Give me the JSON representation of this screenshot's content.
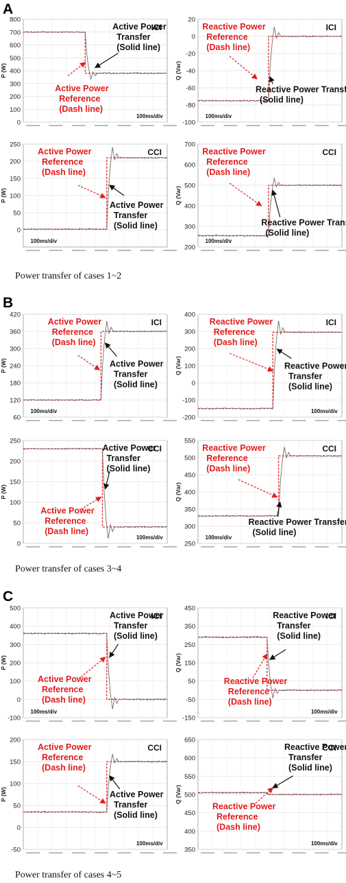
{
  "sections": [
    {
      "letter": "A",
      "caption": "Power transfer of cases 1~2"
    },
    {
      "letter": "B",
      "caption": "Power transfer of cases 3~4"
    },
    {
      "letter": "C",
      "caption": "Power transfer of cases 4~5"
    }
  ],
  "chart_data": [
    {
      "type": "line",
      "interface": "ICI",
      "ylabel": "P (W)",
      "ylim": [
        0,
        800
      ],
      "yticks": [
        0,
        100,
        200,
        300,
        400,
        500,
        600,
        700,
        800
      ],
      "timebase": "100ms/div",
      "reference": {
        "before": 700,
        "after": 380
      },
      "series": [
        {
          "name": "Active Power Reference (Dash line)"
        },
        {
          "name": "Active Power Transfer (Solid line)"
        }
      ],
      "annotations": {
        "reference": "Active Power|Reference|(Dash line)",
        "transfer": "Active Power|Transfer|(Solid line)"
      }
    },
    {
      "type": "line",
      "interface": "ICI",
      "ylabel": "Q (Var)",
      "ylim": [
        -100,
        20
      ],
      "yticks": [
        -100,
        -80,
        -60,
        -40,
        -20,
        0,
        20
      ],
      "timebase": "100ms/div",
      "reference": {
        "before": -75,
        "after": 0
      },
      "series": [
        {
          "name": "Reactive Power Reference (Dash line)"
        },
        {
          "name": "Reactive Power Transfer (Solid line)"
        }
      ],
      "annotations": {
        "reference": "Reactive Power|Reference|(Dash line)",
        "transfer": "Reactive Power Transfer|(Solid line)"
      }
    },
    {
      "type": "line",
      "interface": "CCI",
      "ylabel": "P (W)",
      "ylim": [
        -50,
        250
      ],
      "yticks": [
        0,
        50,
        100,
        150,
        200,
        250
      ],
      "timebase": "100ms/div",
      "reference": {
        "before": 2,
        "after": 210
      },
      "series": [
        {
          "name": "Active Power Reference (Dash line)"
        },
        {
          "name": "Active Power Transfer (Solid line)"
        }
      ],
      "annotations": {
        "reference": "Active Power|Reference|(Dash line)",
        "transfer": "Active Power|Transfer|(Solid line)"
      }
    },
    {
      "type": "line",
      "interface": "CCI",
      "ylabel": "Q (Var)",
      "ylim": [
        200,
        700
      ],
      "yticks": [
        200,
        300,
        400,
        500,
        600,
        700
      ],
      "timebase": "100ms/div",
      "reference": {
        "before": 255,
        "after": 500
      },
      "series": [
        {
          "name": "Reactive Power Reference (Dash line)"
        },
        {
          "name": "Reactive Power Transfer (Solid line)"
        }
      ],
      "annotations": {
        "reference": "Reactive Power|Reference|(Dash line)",
        "transfer": "Reactive Power Transfer|(Solid line)"
      }
    },
    {
      "type": "line",
      "interface": "ICI",
      "ylabel": "P (W)",
      "ylim": [
        60,
        420
      ],
      "yticks": [
        60,
        120,
        180,
        240,
        300,
        360,
        420
      ],
      "timebase": "100ms/div",
      "reference": {
        "before": 120,
        "after": 360
      },
      "series": [
        {
          "name": "Active Power Reference (Dash line)"
        },
        {
          "name": "Active Power Transfer (Solid line)"
        }
      ],
      "annotations": {
        "reference": "Active Power|Reference|(Dash line)",
        "transfer": "Active Power|Transfer|(Solid line)"
      }
    },
    {
      "type": "line",
      "interface": "ICI",
      "ylabel": "Q (Var)",
      "ylim": [
        -200,
        400
      ],
      "yticks": [
        -200,
        -100,
        0,
        100,
        200,
        300,
        400
      ],
      "timebase": "100ms/div",
      "reference": {
        "before": -150,
        "after": 295
      },
      "series": [
        {
          "name": "Reactive Power Reference (Dash line)"
        },
        {
          "name": "Reactive Power Transfer (Solid line)"
        }
      ],
      "annotations": {
        "reference": "Reactive Power|Reference|(Dash line)",
        "transfer": "Reactive Power|Transfer|(Solid line)"
      }
    },
    {
      "type": "line",
      "interface": "CCI",
      "ylabel": "P (W)",
      "ylim": [
        0,
        250
      ],
      "yticks": [
        0,
        50,
        100,
        150,
        200,
        250
      ],
      "timebase": "100ms/div",
      "reference": {
        "before": 230,
        "after": 40
      },
      "series": [
        {
          "name": "Active Power Reference (Dash line)"
        },
        {
          "name": "Active Power Transfer (Solid line)"
        }
      ],
      "annotations": {
        "reference": "Active Power|Reference|(Dash line)",
        "transfer": "Active Power|Transfer|(Solid line)"
      }
    },
    {
      "type": "line",
      "interface": "CCI",
      "ylabel": "Q (Var)",
      "ylim": [
        250,
        550
      ],
      "yticks": [
        250,
        300,
        350,
        400,
        450,
        500,
        550
      ],
      "timebase": "100ms/div",
      "reference": {
        "before": 330,
        "after": 505
      },
      "series": [
        {
          "name": "Reactive Power Reference (Dash line)"
        },
        {
          "name": "Reactive Power Transfer (Solid line)"
        }
      ],
      "annotations": {
        "reference": "Reactive Power|Reference|(Dash line)",
        "transfer": "Reactive Power Transfer|(Solid line)"
      }
    },
    {
      "type": "line",
      "interface": "ICI",
      "ylabel": "P (W)",
      "ylim": [
        -100,
        500
      ],
      "yticks": [
        -100,
        0,
        100,
        200,
        300,
        400,
        500
      ],
      "timebase": "100ms/div",
      "reference": {
        "before": 360,
        "after": 0
      },
      "series": [
        {
          "name": "Active Power Reference (Dash line)"
        },
        {
          "name": "Active Power Transfer (Solid line)"
        }
      ],
      "annotations": {
        "reference": "Active Power|Reference|(Dash line)",
        "transfer": "Active Power|Transfer|(Solid line)"
      }
    },
    {
      "type": "line",
      "interface": "ICI",
      "ylabel": "Q (Var)",
      "ylim": [
        -150,
        450
      ],
      "yticks": [
        -150,
        -50,
        50,
        150,
        250,
        350,
        450
      ],
      "timebase": "100ms/div",
      "reference": {
        "before": 290,
        "after": 0
      },
      "series": [
        {
          "name": "Reactive Power Reference (Dash line)"
        },
        {
          "name": "Reactive Power Transfer (Solid line)"
        }
      ],
      "annotations": {
        "reference": "Reactive Power|Reference|(Dash line)",
        "transfer": "Reactive Power|Transfer|(Solid line)"
      }
    },
    {
      "type": "line",
      "interface": "CCI",
      "ylabel": "P (W)",
      "ylim": [
        -50,
        200
      ],
      "yticks": [
        -50,
        0,
        50,
        100,
        150,
        200
      ],
      "timebase": "100ms/div",
      "reference": {
        "before": 35,
        "after": 150
      },
      "series": [
        {
          "name": "Active Power Reference (Dash line)"
        },
        {
          "name": "Active Power Transfer (Solid line)"
        }
      ],
      "annotations": {
        "reference": "Active Power|Reference|(Dash line)",
        "transfer": "Active Power|Transfer|(Solid line)"
      }
    },
    {
      "type": "line",
      "interface": "CCI",
      "ylabel": "Q (Var)",
      "ylim": [
        350,
        650
      ],
      "yticks": [
        350,
        400,
        450,
        500,
        550,
        600,
        650
      ],
      "timebase": "100ms/div",
      "reference": {
        "before": 505,
        "after": 500
      },
      "series": [
        {
          "name": "Reactive Power Reference (Dash line)"
        },
        {
          "name": "Reactive Power Transfer (Solid line)"
        }
      ],
      "annotations": {
        "reference": "Reactive Power|Reference|(Dash line)",
        "transfer": "Reactive Power|Transfer|(Solid line)"
      }
    }
  ]
}
